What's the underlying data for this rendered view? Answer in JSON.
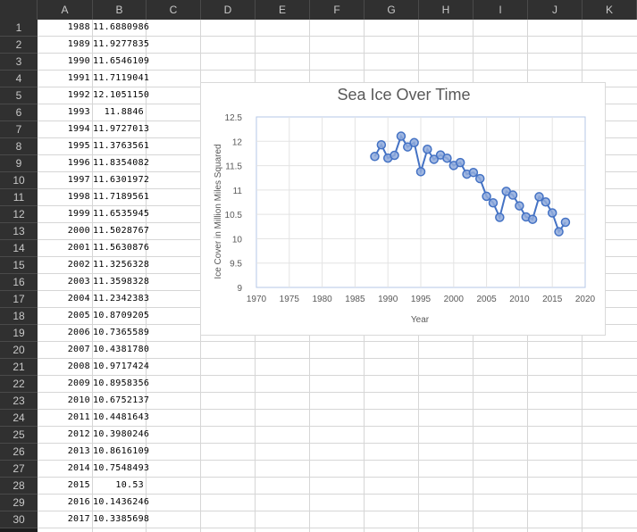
{
  "columns": [
    "A",
    "B",
    "C",
    "D",
    "E",
    "F",
    "G",
    "H",
    "I",
    "J",
    "K"
  ],
  "rows": [
    {
      "year": "1988",
      "value": "11.6880986"
    },
    {
      "year": "1989",
      "value": "11.9277835"
    },
    {
      "year": "1990",
      "value": "11.6546109"
    },
    {
      "year": "1991",
      "value": "11.7119041"
    },
    {
      "year": "1992",
      "value": "12.1051150"
    },
    {
      "year": "1993",
      "value": "11.8846"
    },
    {
      "year": "1994",
      "value": "11.9727013"
    },
    {
      "year": "1995",
      "value": "11.3763561"
    },
    {
      "year": "1996",
      "value": "11.8354082"
    },
    {
      "year": "1997",
      "value": "11.6301972"
    },
    {
      "year": "1998",
      "value": "11.7189561"
    },
    {
      "year": "1999",
      "value": "11.6535945"
    },
    {
      "year": "2000",
      "value": "11.5028767"
    },
    {
      "year": "2001",
      "value": "11.5630876"
    },
    {
      "year": "2002",
      "value": "11.3256328"
    },
    {
      "year": "2003",
      "value": "11.3598328"
    },
    {
      "year": "2004",
      "value": "11.2342383"
    },
    {
      "year": "2005",
      "value": "10.8709205"
    },
    {
      "year": "2006",
      "value": "10.7365589"
    },
    {
      "year": "2007",
      "value": "10.4381780"
    },
    {
      "year": "2008",
      "value": "10.9717424"
    },
    {
      "year": "2009",
      "value": "10.8958356"
    },
    {
      "year": "2010",
      "value": "10.6752137"
    },
    {
      "year": "2011",
      "value": "10.4481643"
    },
    {
      "year": "2012",
      "value": "10.3980246"
    },
    {
      "year": "2013",
      "value": "10.8616109"
    },
    {
      "year": "2014",
      "value": "10.7548493"
    },
    {
      "year": "2015",
      "value": "10.53"
    },
    {
      "year": "2016",
      "value": "10.1436246"
    },
    {
      "year": "2017",
      "value": "10.3385698"
    }
  ],
  "colors": {
    "series": "#4472c4",
    "marker": "#8faadc",
    "header_bg": "#303030",
    "grid": "#d6d6d6"
  },
  "chart_data": {
    "type": "scatter",
    "title": "Sea Ice Over Time",
    "xlabel": "Year",
    "ylabel": "Ice Cover in Million Miles Squared",
    "xlim": [
      1970,
      2020
    ],
    "ylim": [
      9,
      12.5
    ],
    "xticks": [
      "1970",
      "1975",
      "1980",
      "1985",
      "1990",
      "1995",
      "2000",
      "2005",
      "2010",
      "2015",
      "2020"
    ],
    "yticks": [
      "12.5",
      "12",
      "11.5",
      "11",
      "10.5",
      "10",
      "9.5",
      "9"
    ],
    "grid": true,
    "series": [
      {
        "x": [
          1988,
          1989,
          1990,
          1991,
          1992,
          1993,
          1994,
          1995,
          1996,
          1997,
          1998,
          1999,
          2000,
          2001,
          2002,
          2003,
          2004,
          2005,
          2006,
          2007,
          2008,
          2009,
          2010,
          2011,
          2012,
          2013,
          2014,
          2015,
          2016,
          2017
        ],
        "y": [
          11.6880986,
          11.9277835,
          11.6546109,
          11.7119041,
          12.105115,
          11.8846,
          11.9727013,
          11.3763561,
          11.8354082,
          11.6301972,
          11.7189561,
          11.6535945,
          11.5028767,
          11.5630876,
          11.3256328,
          11.3598328,
          11.2342383,
          10.8709205,
          10.7365589,
          10.438178,
          10.9717424,
          10.8958356,
          10.6752137,
          10.4481643,
          10.3980246,
          10.8616109,
          10.7548493,
          10.53,
          10.1436246,
          10.3385698
        ]
      }
    ]
  }
}
